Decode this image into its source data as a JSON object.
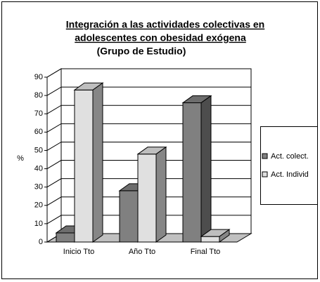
{
  "chart_data": {
    "type": "bar3d",
    "title_lines": [
      "Integración a las actividades colectivas en",
      "adolescentes con obesidad exógena"
    ],
    "subtitle": "(Grupo de Estudio)",
    "y_label": "%",
    "categories": [
      "Inicio Tto",
      "Año Tto",
      "Final Tto"
    ],
    "series": [
      {
        "name": "Act. colect.",
        "color": "#808080",
        "values": [
          5,
          28,
          76
        ]
      },
      {
        "name": "Act. Individ",
        "color": "#e0e0e0",
        "values": [
          83,
          48,
          3
        ]
      }
    ],
    "ylim": [
      0,
      90
    ],
    "yticks": [
      0,
      10,
      20,
      30,
      40,
      50,
      60,
      70,
      80,
      90
    ],
    "grid": true,
    "legend": "right"
  }
}
